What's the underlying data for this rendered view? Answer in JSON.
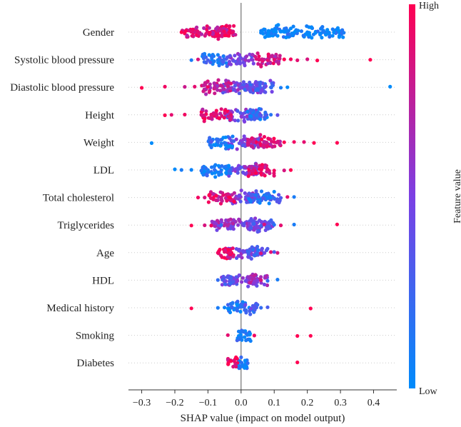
{
  "chart_data": {
    "type": "scatter",
    "subtype": "shap-beeswarm",
    "title": "",
    "xlabel": "SHAP value (impact on model output)",
    "ylabel": "",
    "xlim": [
      -0.34,
      0.47
    ],
    "xticks": [
      -0.3,
      -0.2,
      -0.1,
      0.0,
      0.1,
      0.2,
      0.3,
      0.4
    ],
    "xtick_labels": [
      "−0.3",
      "−0.2",
      "−0.1",
      "0.0",
      "0.1",
      "0.2",
      "0.3",
      "0.4"
    ],
    "colorbar": {
      "label": "Feature value",
      "high_label": "High",
      "low_label": "Low",
      "high_color": "#ff0052",
      "low_color": "#008bfb"
    },
    "features": [
      {
        "name": "Gender",
        "dense": [
          [
            -0.09,
            -0.015,
            0.9
          ],
          [
            -0.18,
            -0.02,
            0.85
          ],
          [
            0.06,
            0.1,
            0.0
          ],
          [
            0.1,
            0.31,
            0.05
          ]
        ],
        "points": [
          [
            -0.18,
            1
          ],
          [
            -0.15,
            0.9
          ],
          [
            0.06,
            0.05
          ],
          [
            0.12,
            0.0
          ],
          [
            0.2,
            0.05
          ],
          [
            0.25,
            0.1
          ],
          [
            0.28,
            0.0
          ],
          [
            0.31,
            0.1
          ]
        ]
      },
      {
        "name": "Systolic blood pressure",
        "dense": [
          [
            -0.04,
            0.04,
            0.5
          ],
          [
            0.04,
            0.12,
            0.8
          ],
          [
            -0.12,
            -0.04,
            0.2
          ]
        ],
        "points": [
          [
            -0.15,
            0.1
          ],
          [
            -0.13,
            0.85
          ],
          [
            -0.1,
            0.3
          ],
          [
            -0.07,
            0.1
          ],
          [
            0.08,
            0.9
          ],
          [
            0.1,
            0.9
          ],
          [
            0.13,
            1
          ],
          [
            0.15,
            0.95
          ],
          [
            0.17,
            0.9
          ],
          [
            0.2,
            0.85
          ],
          [
            0.23,
            1
          ],
          [
            0.39,
            1
          ]
        ]
      },
      {
        "name": "Diastolic blood pressure",
        "dense": [
          [
            -0.06,
            0.06,
            0.5
          ],
          [
            0.0,
            0.1,
            0.35
          ],
          [
            -0.12,
            -0.03,
            0.75
          ]
        ],
        "points": [
          [
            -0.3,
            1
          ],
          [
            -0.23,
            0.95
          ],
          [
            -0.17,
            0.8
          ],
          [
            -0.14,
            0.9
          ],
          [
            -0.1,
            0.95
          ],
          [
            -0.08,
            0.75
          ],
          [
            0.07,
            0.35
          ],
          [
            0.09,
            0.2
          ],
          [
            0.12,
            0.1
          ],
          [
            0.14,
            0.0
          ],
          [
            0.45,
            0.0
          ]
        ]
      },
      {
        "name": "Height",
        "dense": [
          [
            -0.05,
            0.06,
            0.45
          ],
          [
            -0.12,
            -0.03,
            0.85
          ],
          [
            0.02,
            0.08,
            0.15
          ]
        ],
        "points": [
          [
            -0.23,
            1
          ],
          [
            -0.21,
            0.9
          ],
          [
            -0.17,
            0.95
          ],
          [
            -0.12,
            0.85
          ],
          [
            -0.09,
            0.9
          ],
          [
            0.06,
            0.35
          ],
          [
            0.09,
            0.15
          ],
          [
            0.11,
            0.4
          ]
        ]
      },
      {
        "name": "Weight",
        "dense": [
          [
            -0.04,
            0.06,
            0.5
          ],
          [
            0.02,
            0.12,
            0.85
          ],
          [
            -0.1,
            -0.02,
            0.1
          ]
        ],
        "points": [
          [
            -0.27,
            0.0
          ],
          [
            -0.09,
            0.35
          ],
          [
            -0.07,
            0.2
          ],
          [
            -0.05,
            0.15
          ],
          [
            0.1,
            0.9
          ],
          [
            0.13,
            1
          ],
          [
            0.16,
            0.95
          ],
          [
            0.19,
            0.9
          ],
          [
            0.22,
            1
          ],
          [
            0.29,
            1
          ]
        ]
      },
      {
        "name": "LDL",
        "dense": [
          [
            -0.04,
            0.05,
            0.5
          ],
          [
            -0.12,
            -0.03,
            0.1
          ],
          [
            0.02,
            0.1,
            0.85
          ]
        ],
        "points": [
          [
            -0.2,
            0.0
          ],
          [
            -0.18,
            0.1
          ],
          [
            -0.15,
            0.05
          ],
          [
            -0.12,
            0.15
          ],
          [
            -0.1,
            0.1
          ],
          [
            -0.08,
            0.2
          ],
          [
            0.08,
            0.9
          ],
          [
            0.1,
            0.95
          ],
          [
            0.13,
            0.85
          ],
          [
            0.15,
            1
          ]
        ]
      },
      {
        "name": "Total cholesterol",
        "dense": [
          [
            -0.04,
            0.05,
            0.5
          ],
          [
            -0.1,
            -0.02,
            0.85
          ],
          [
            0.02,
            0.12,
            0.2
          ]
        ],
        "points": [
          [
            -0.13,
            0.95
          ],
          [
            -0.11,
            0.85
          ],
          [
            -0.09,
            0.9
          ],
          [
            -0.06,
            0.8
          ],
          [
            0.08,
            0.1
          ],
          [
            0.1,
            0.2
          ],
          [
            0.12,
            0.3
          ],
          [
            0.14,
            0.9
          ],
          [
            0.16,
            0.1
          ]
        ]
      },
      {
        "name": "Triglycerides",
        "dense": [
          [
            -0.04,
            0.05,
            0.5
          ],
          [
            -0.09,
            -0.02,
            0.6
          ],
          [
            0.02,
            0.1,
            0.4
          ]
        ],
        "points": [
          [
            -0.15,
            1
          ],
          [
            -0.11,
            0.85
          ],
          [
            -0.09,
            0.95
          ],
          [
            -0.06,
            0.2
          ],
          [
            0.07,
            0.85
          ],
          [
            0.1,
            0.15
          ],
          [
            0.12,
            0.9
          ],
          [
            0.16,
            0.1
          ],
          [
            0.29,
            1
          ]
        ]
      },
      {
        "name": "Age",
        "dense": [
          [
            -0.04,
            0.05,
            0.5
          ],
          [
            -0.07,
            -0.02,
            0.9
          ],
          [
            0.02,
            0.08,
            0.3
          ]
        ],
        "points": [
          [
            -0.07,
            0.95
          ],
          [
            -0.05,
            0.9
          ],
          [
            0.06,
            0.85
          ],
          [
            0.09,
            0.9
          ],
          [
            0.11,
            0.85
          ],
          [
            0.1,
            0.3
          ]
        ]
      },
      {
        "name": "HDL",
        "dense": [
          [
            -0.04,
            0.05,
            0.5
          ],
          [
            -0.06,
            -0.02,
            0.4
          ],
          [
            0.02,
            0.08,
            0.6
          ]
        ],
        "points": [
          [
            -0.07,
            0.2
          ],
          [
            -0.05,
            0.4
          ],
          [
            0.06,
            0.85
          ],
          [
            0.08,
            0.2
          ],
          [
            0.11,
            0.1
          ]
        ]
      },
      {
        "name": "Medical history",
        "dense": [
          [
            -0.04,
            0.04,
            0.1
          ],
          [
            0.0,
            0.05,
            0.3
          ]
        ],
        "points": [
          [
            -0.15,
            1
          ],
          [
            -0.07,
            0.1
          ],
          [
            -0.05,
            0.05
          ],
          [
            0.06,
            0.2
          ],
          [
            0.08,
            0.3
          ],
          [
            0.21,
            1
          ]
        ]
      },
      {
        "name": "Smoking",
        "dense": [
          [
            -0.02,
            0.03,
            0.1
          ]
        ],
        "points": [
          [
            -0.04,
            0.9
          ],
          [
            0.04,
            0.95
          ],
          [
            0.17,
            1
          ],
          [
            0.21,
            1
          ]
        ]
      },
      {
        "name": "Diabetes",
        "dense": [
          [
            -0.01,
            0.02,
            0.1
          ],
          [
            -0.04,
            -0.01,
            0.95
          ]
        ],
        "points": [
          [
            0.02,
            0.2
          ],
          [
            0.17,
            1
          ]
        ]
      }
    ]
  }
}
